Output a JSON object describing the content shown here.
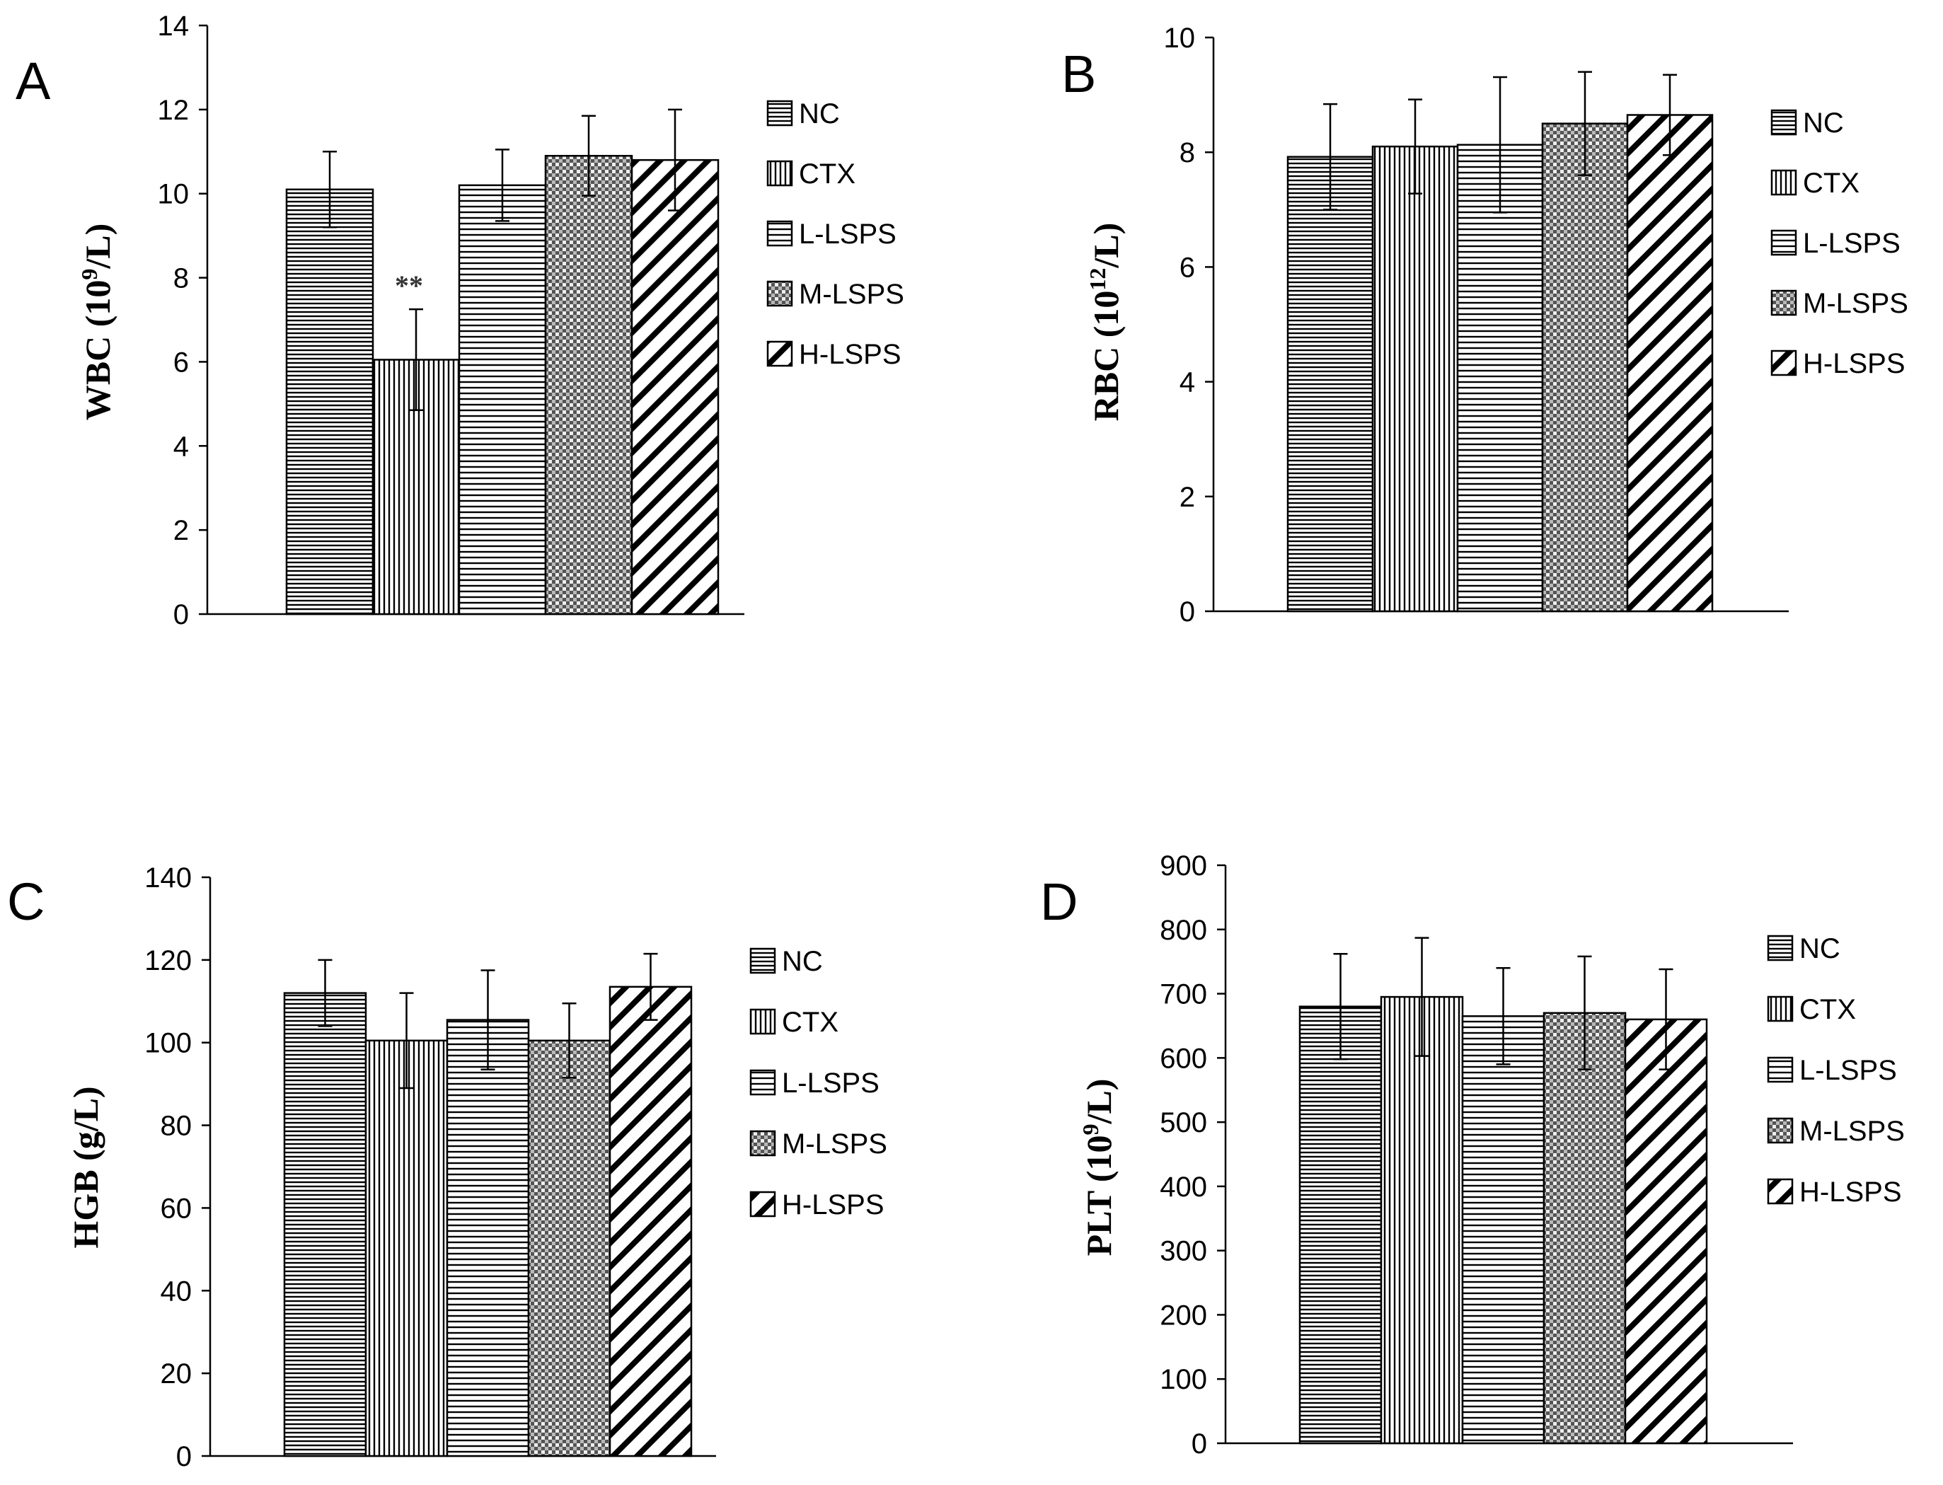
{
  "colors": {
    "ink": "#000000",
    "bar_fill": "#ffffff",
    "error_bar": "#000000"
  },
  "chart_data": [
    {
      "type": "bar",
      "panel_label": "A",
      "ylabel_main": "WBC (10",
      "ylabel_sup": "9",
      "ylabel_unit": "/L)",
      "xlabel": "",
      "ylim": [
        0,
        14
      ],
      "yticks": [
        0,
        2,
        4,
        6,
        8,
        10,
        12,
        14
      ],
      "categories": [
        "NC",
        "CTX",
        "L-LSPS",
        "M-LSPS",
        "H-LSPS"
      ],
      "values": [
        10.1,
        6.05,
        10.2,
        10.9,
        10.8
      ],
      "errors": [
        0.9,
        1.2,
        0.85,
        0.95,
        1.2
      ],
      "annotations": [
        {
          "category": "CTX",
          "text": "**"
        }
      ],
      "legend": [
        "NC",
        "CTX",
        "L-LSPS",
        "M-LSPS",
        "H-LSPS"
      ]
    },
    {
      "type": "bar",
      "panel_label": "B",
      "ylabel_main": "RBC (10",
      "ylabel_sup": "12",
      "ylabel_unit": "/L)",
      "xlabel": "",
      "ylim": [
        0,
        10
      ],
      "yticks": [
        0,
        2,
        4,
        6,
        8,
        10
      ],
      "categories": [
        "NC",
        "CTX",
        "L-LSPS",
        "M-LSPS",
        "H-LSPS"
      ],
      "values": [
        7.92,
        8.1,
        8.13,
        8.5,
        8.65
      ],
      "errors": [
        0.92,
        0.82,
        1.18,
        0.9,
        0.7
      ],
      "annotations": [],
      "legend": [
        "NC",
        "CTX",
        "L-LSPS",
        "M-LSPS",
        "H-LSPS"
      ]
    },
    {
      "type": "bar",
      "panel_label": "C",
      "ylabel_main": "HGB (g/L)",
      "ylabel_sup": "",
      "ylabel_unit": "",
      "xlabel": "",
      "ylim": [
        0,
        140
      ],
      "yticks": [
        0,
        20,
        40,
        60,
        80,
        100,
        120,
        140
      ],
      "categories": [
        "NC",
        "CTX",
        "L-LSPS",
        "M-LSPS",
        "H-LSPS"
      ],
      "values": [
        112,
        100.5,
        105.5,
        100.5,
        113.5
      ],
      "errors": [
        8,
        11.5,
        12,
        9,
        8
      ],
      "annotations": [],
      "legend": [
        "NC",
        "CTX",
        "L-LSPS",
        "M-LSPS",
        "H-LSPS"
      ]
    },
    {
      "type": "bar",
      "panel_label": "D",
      "ylabel_main": "PLT (10",
      "ylabel_sup": "9",
      "ylabel_unit": "/L)",
      "xlabel": "",
      "ylim": [
        0,
        900
      ],
      "yticks": [
        0,
        100,
        200,
        300,
        400,
        500,
        600,
        700,
        800,
        900
      ],
      "categories": [
        "NC",
        "CTX",
        "L-LSPS",
        "M-LSPS",
        "H-LSPS"
      ],
      "values": [
        680,
        695,
        665,
        670,
        660
      ],
      "errors": [
        82,
        92,
        75,
        88,
        78
      ],
      "annotations": [],
      "legend": [
        "NC",
        "CTX",
        "L-LSPS",
        "M-LSPS",
        "H-LSPS"
      ]
    }
  ]
}
